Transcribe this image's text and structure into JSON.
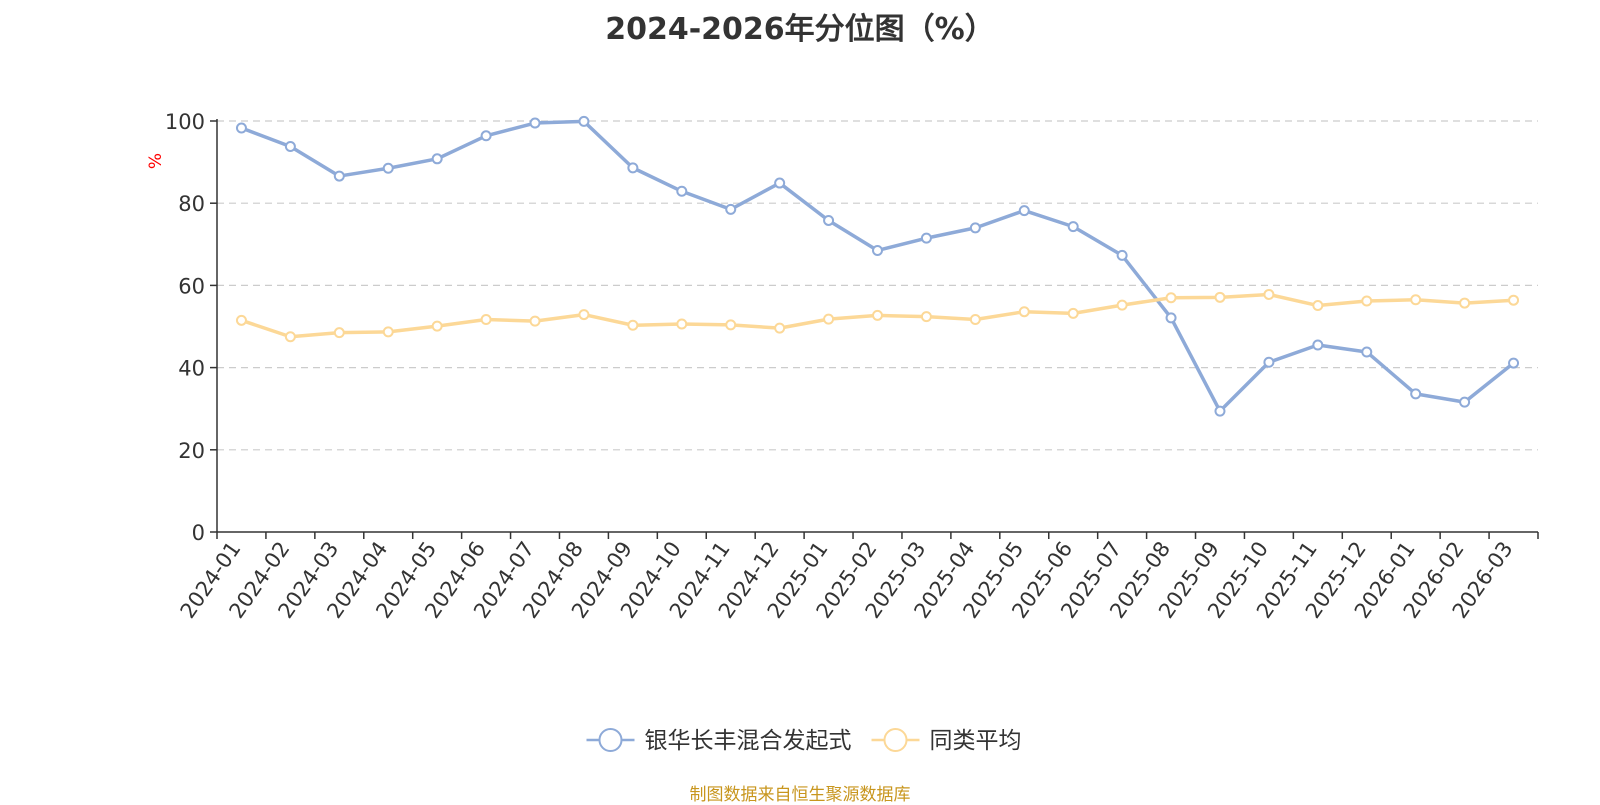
{
  "title": "2024-2026年分位图（%）",
  "footer": "制图数据来自恒生聚源数据库",
  "chart_data": {
    "type": "line",
    "title": "2024-2026年分位图（%）",
    "ylabel": "%",
    "xlabel": "",
    "ylim": [
      0,
      100
    ],
    "yticks": [
      0,
      20,
      40,
      60,
      80,
      100
    ],
    "grid": true,
    "legend_position": "bottom",
    "categories": [
      "2024-01",
      "2024-02",
      "2024-03",
      "2024-04",
      "2024-05",
      "2024-06",
      "2024-07",
      "2024-08",
      "2024-09",
      "2024-10",
      "2024-11",
      "2024-12",
      "2025-01",
      "2025-02",
      "2025-03",
      "2025-04",
      "2025-05",
      "2025-06",
      "2025-07",
      "2025-08",
      "2025-09",
      "2025-10",
      "2025-11",
      "2025-12",
      "2026-01",
      "2026-02",
      "2026-03"
    ],
    "series": [
      {
        "name": "银华长丰混合发起式",
        "color": "#8eaad8",
        "values": [
          98.3,
          93.8,
          86.6,
          88.5,
          90.8,
          96.4,
          99.5,
          99.9,
          88.6,
          82.9,
          78.5,
          84.9,
          75.8,
          68.5,
          71.5,
          74.0,
          78.2,
          74.3,
          67.3,
          52.1,
          29.4,
          41.3,
          45.5,
          43.8,
          33.6,
          31.6,
          41.1
        ]
      },
      {
        "name": "同类平均",
        "color": "#fcd897",
        "values": [
          51.5,
          47.5,
          48.5,
          48.7,
          50.1,
          51.7,
          51.3,
          52.9,
          50.3,
          50.6,
          50.4,
          49.6,
          51.8,
          52.7,
          52.4,
          51.7,
          53.6,
          53.2,
          55.2,
          57.0,
          57.1,
          57.8,
          55.1,
          56.2,
          56.5,
          55.7,
          56.4
        ]
      }
    ]
  }
}
